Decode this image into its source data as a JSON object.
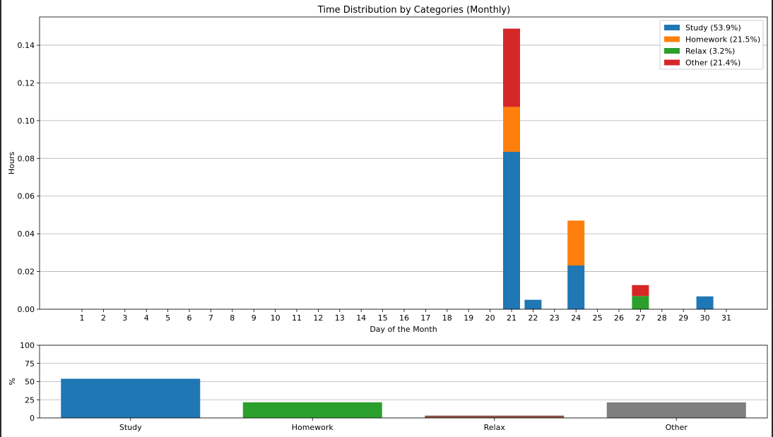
{
  "chart_data": [
    {
      "type": "bar",
      "stacked": true,
      "title": "Time Distribution by Categories (Monthly)",
      "xlabel": "Day of the Month",
      "ylabel": "Hours",
      "categories": [
        "1",
        "2",
        "3",
        "4",
        "5",
        "6",
        "7",
        "8",
        "9",
        "10",
        "11",
        "12",
        "13",
        "14",
        "15",
        "16",
        "17",
        "18",
        "19",
        "20",
        "21",
        "22",
        "23",
        "24",
        "25",
        "26",
        "27",
        "28",
        "29",
        "30",
        "31"
      ],
      "ylim": [
        0,
        0.155
      ],
      "yticks": [
        "0.00",
        "0.02",
        "0.04",
        "0.06",
        "0.08",
        "0.10",
        "0.12",
        "0.14"
      ],
      "grid": true,
      "legend_position": "top-right",
      "series": [
        {
          "name": "Study (53.9%)",
          "color": "#1f77b4",
          "values": [
            0,
            0,
            0,
            0,
            0,
            0,
            0,
            0,
            0,
            0,
            0,
            0,
            0,
            0,
            0,
            0,
            0,
            0,
            0,
            0,
            0.0835,
            0.005,
            0,
            0.0232,
            0,
            0,
            0,
            0,
            0,
            0.0068,
            0
          ]
        },
        {
          "name": "Homework (21.5%)",
          "color": "#ff7f0e",
          "values": [
            0,
            0,
            0,
            0,
            0,
            0,
            0,
            0,
            0,
            0,
            0,
            0,
            0,
            0,
            0,
            0,
            0,
            0,
            0,
            0,
            0.0238,
            0,
            0,
            0.0238,
            0,
            0,
            0,
            0,
            0,
            0,
            0
          ]
        },
        {
          "name": "Relax (3.2%)",
          "color": "#2ca02c",
          "values": [
            0,
            0,
            0,
            0,
            0,
            0,
            0,
            0,
            0,
            0,
            0,
            0,
            0,
            0,
            0,
            0,
            0,
            0,
            0,
            0,
            0,
            0,
            0,
            0,
            0,
            0,
            0.007,
            0,
            0,
            0,
            0
          ]
        },
        {
          "name": "Other (21.4%)",
          "color": "#d62728",
          "values": [
            0,
            0,
            0,
            0,
            0,
            0,
            0,
            0,
            0,
            0,
            0,
            0,
            0,
            0,
            0,
            0,
            0,
            0,
            0,
            0,
            0.0415,
            0,
            0,
            0,
            0,
            0,
            0.0058,
            0,
            0,
            0,
            0
          ]
        }
      ]
    },
    {
      "type": "bar",
      "title": "",
      "xlabel": "",
      "ylabel": "%",
      "categories": [
        "Study",
        "Homework",
        "Relax",
        "Other"
      ],
      "values": [
        53.9,
        21.5,
        3.2,
        21.4
      ],
      "colors": [
        "#1f77b4",
        "#2ca02c",
        "#8c564b",
        "#7f7f7f"
      ],
      "ylim": [
        0,
        100
      ],
      "yticks": [
        "0",
        "25",
        "50",
        "75",
        "100"
      ],
      "grid": true
    }
  ]
}
